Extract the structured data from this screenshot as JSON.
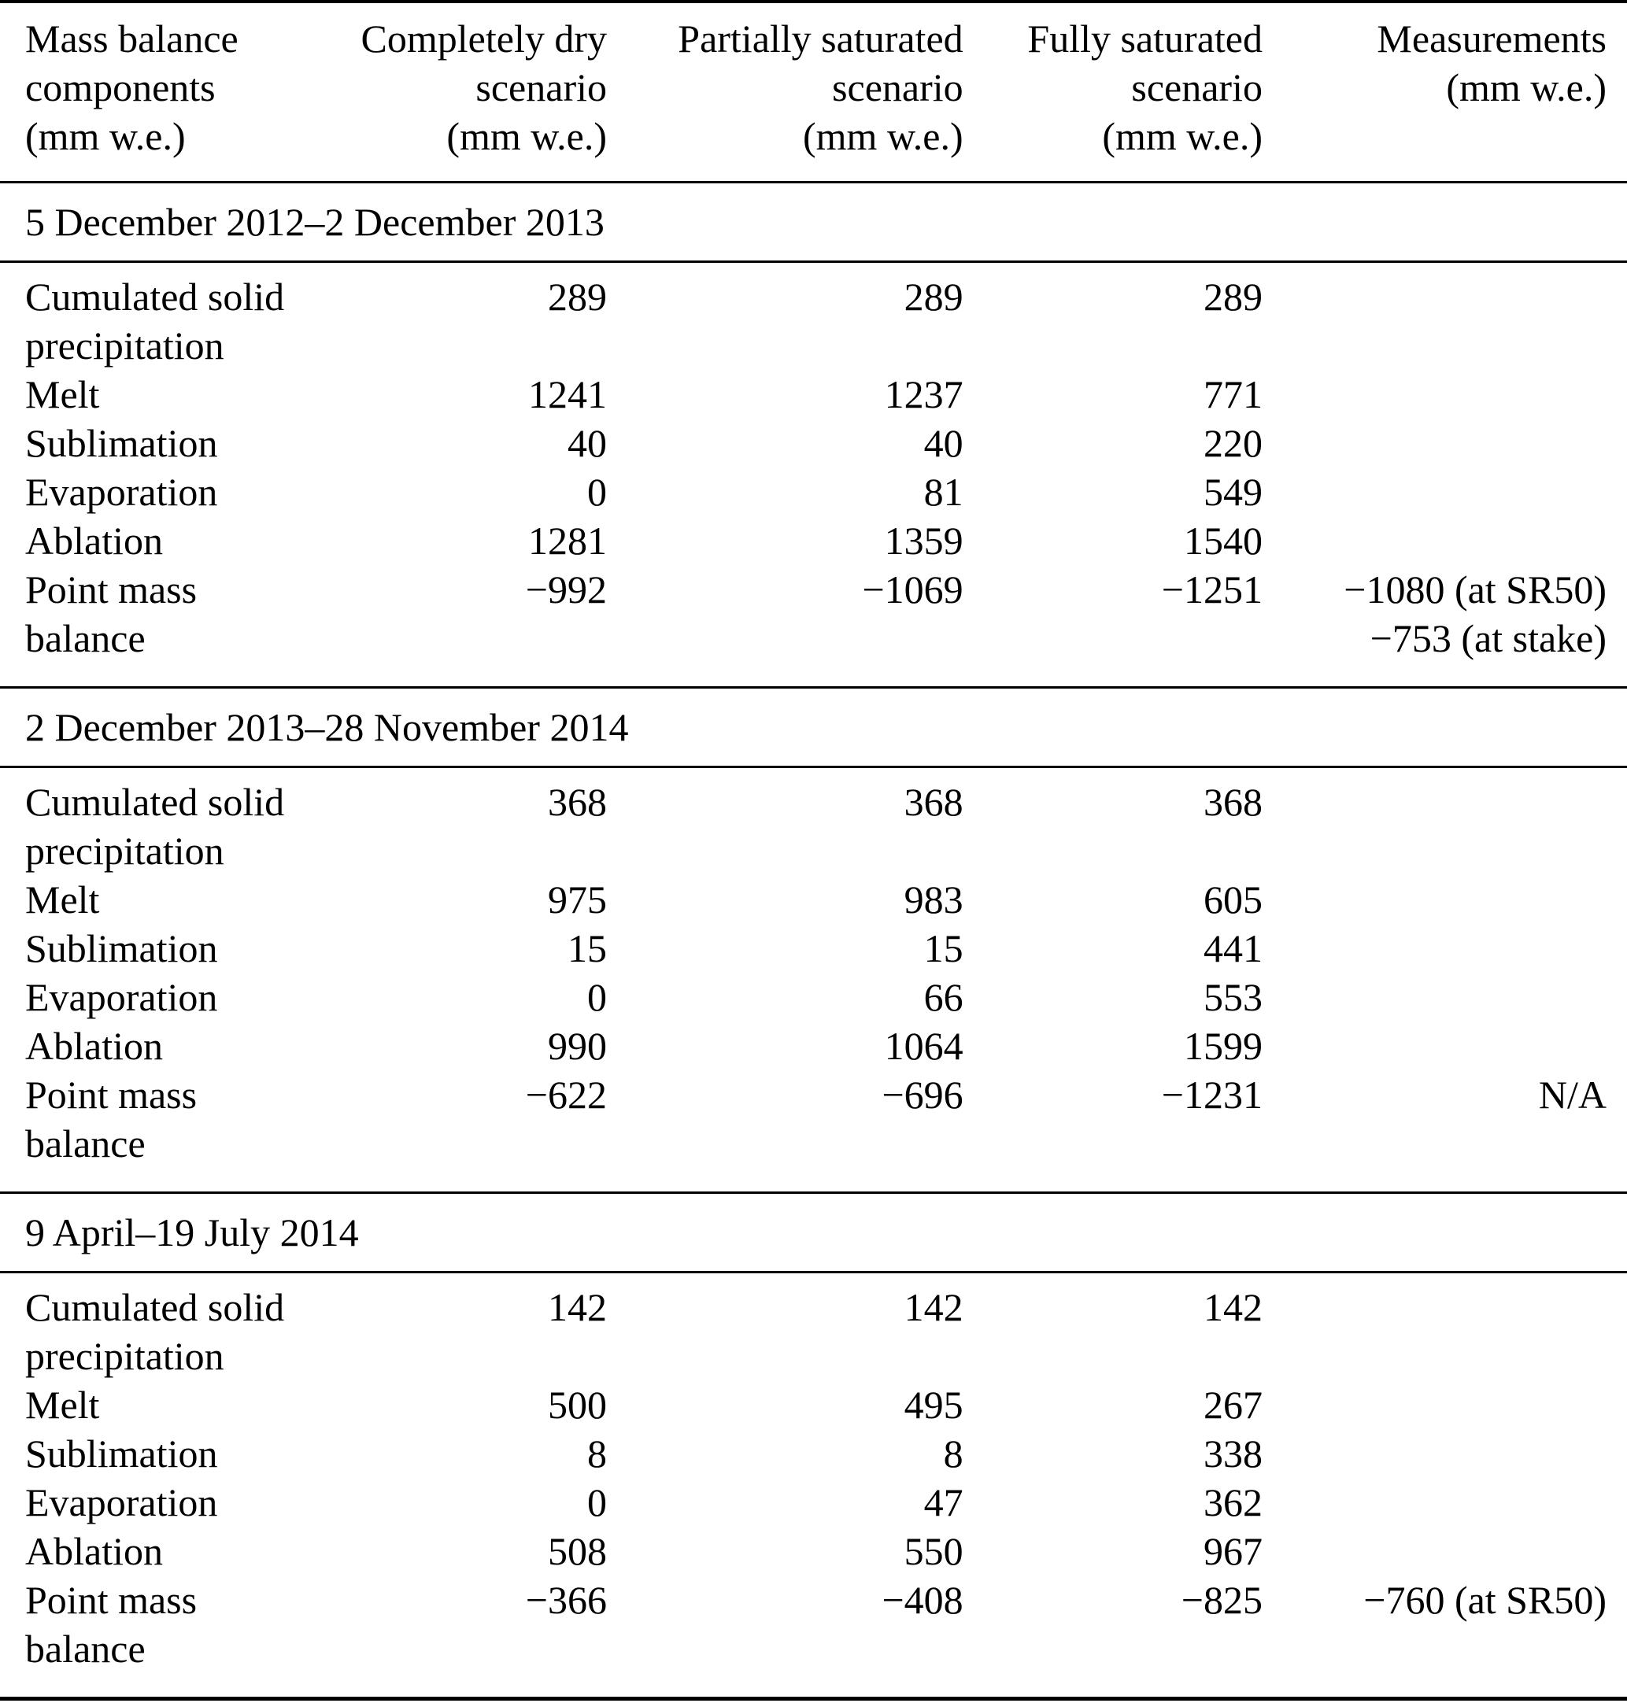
{
  "page": {
    "background_color": "#ffffff",
    "text_color": "#000000",
    "rule_color": "#000000"
  },
  "table": {
    "headers": [
      "Mass balance\ncomponents\n(mm w.e.)",
      "Completely dry\nscenario\n(mm w.e.)",
      "Partially saturated\nscenario\n(mm w.e.)",
      "Fully saturated\nscenario\n(mm w.e.)",
      "Measurements\n(mm w.e.)"
    ],
    "sections": [
      {
        "title": "5 December 2012–2 December 2013",
        "rows": [
          {
            "label": "Cumulated solid\nprecipitation",
            "values": [
              "289",
              "289",
              "289",
              ""
            ]
          },
          {
            "label": "Melt",
            "values": [
              "1241",
              "1237",
              "771",
              ""
            ]
          },
          {
            "label": "Sublimation",
            "values": [
              "40",
              "40",
              "220",
              ""
            ]
          },
          {
            "label": "Evaporation",
            "values": [
              "0",
              "81",
              "549",
              ""
            ]
          },
          {
            "label": "Ablation",
            "values": [
              "1281",
              "1359",
              "1540",
              ""
            ]
          },
          {
            "label": "Point mass\nbalance",
            "values": [
              "−992",
              "−1069",
              "−1251",
              "−1080 (at SR50)\n−753 (at stake)"
            ]
          }
        ]
      },
      {
        "title": "2 December 2013–28 November 2014",
        "rows": [
          {
            "label": "Cumulated solid\nprecipitation",
            "values": [
              "368",
              "368",
              "368",
              ""
            ]
          },
          {
            "label": "Melt",
            "values": [
              "975",
              "983",
              "605",
              ""
            ]
          },
          {
            "label": "Sublimation",
            "values": [
              "15",
              "15",
              "441",
              ""
            ]
          },
          {
            "label": "Evaporation",
            "values": [
              "0",
              "66",
              "553",
              ""
            ]
          },
          {
            "label": "Ablation",
            "values": [
              "990",
              "1064",
              "1599",
              ""
            ]
          },
          {
            "label": "Point mass\nbalance",
            "values": [
              "−622",
              "−696",
              "−1231",
              "N/A"
            ]
          }
        ]
      },
      {
        "title": "9 April–19 July 2014",
        "rows": [
          {
            "label": "Cumulated solid\nprecipitation",
            "values": [
              "142",
              "142",
              "142",
              ""
            ]
          },
          {
            "label": "Melt",
            "values": [
              "500",
              "495",
              "267",
              ""
            ]
          },
          {
            "label": "Sublimation",
            "values": [
              "8",
              "8",
              "338",
              ""
            ]
          },
          {
            "label": "Evaporation",
            "values": [
              "0",
              "47",
              "362",
              ""
            ]
          },
          {
            "label": "Ablation",
            "values": [
              "508",
              "550",
              "967",
              ""
            ]
          },
          {
            "label": "Point mass\nbalance",
            "values": [
              "−366",
              "−408",
              "−825",
              "−760 (at SR50)"
            ]
          }
        ]
      }
    ]
  }
}
